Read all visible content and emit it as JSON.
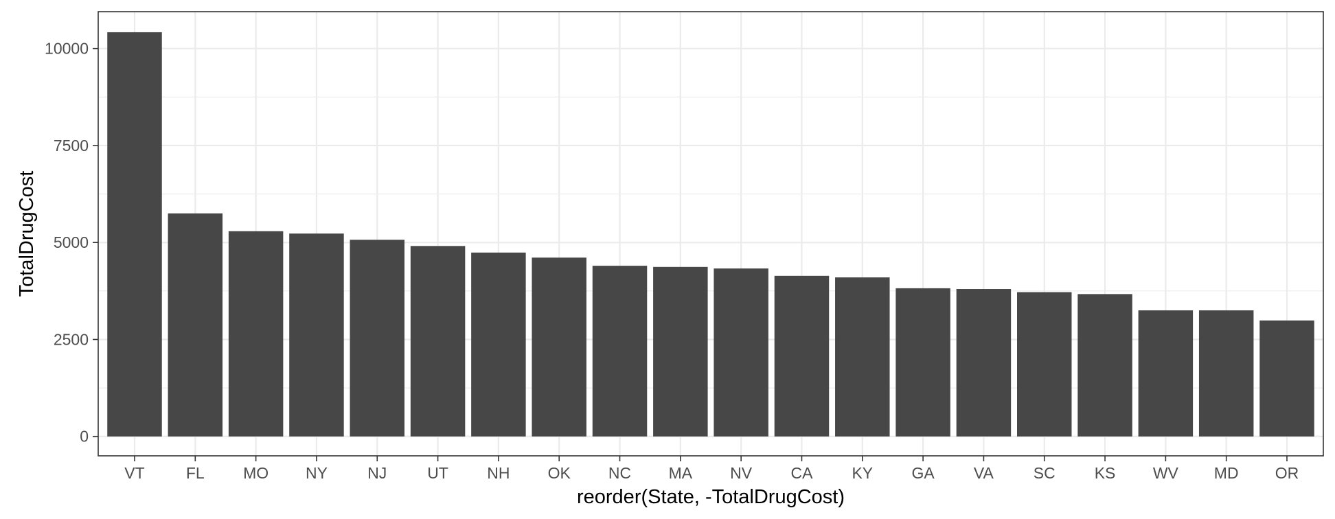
{
  "chart_data": {
    "type": "bar",
    "title": "",
    "xlabel": "reorder(State, -TotalDrugCost)",
    "ylabel": "TotalDrugCost",
    "categories": [
      "VT",
      "FL",
      "MO",
      "NY",
      "NJ",
      "UT",
      "NH",
      "OK",
      "NC",
      "MA",
      "NV",
      "CA",
      "KY",
      "GA",
      "VA",
      "SC",
      "KS",
      "WV",
      "MD",
      "OR"
    ],
    "values": [
      10420,
      5750,
      5290,
      5230,
      5070,
      4910,
      4740,
      4610,
      4400,
      4370,
      4330,
      4140,
      4100,
      3820,
      3800,
      3720,
      3670,
      3250,
      3250,
      2990
    ],
    "ylim": [
      -500,
      10950
    ],
    "yticks": [
      0,
      2500,
      5000,
      7500,
      10000
    ],
    "ytick_labels": [
      "0",
      "2500",
      "5000",
      "7500",
      "10000"
    ],
    "grid": true,
    "legend": "none",
    "colors": {
      "bar": "#474747",
      "panel_background": "#ffffff",
      "grid": "#ebebeb",
      "border": "#333333"
    }
  }
}
